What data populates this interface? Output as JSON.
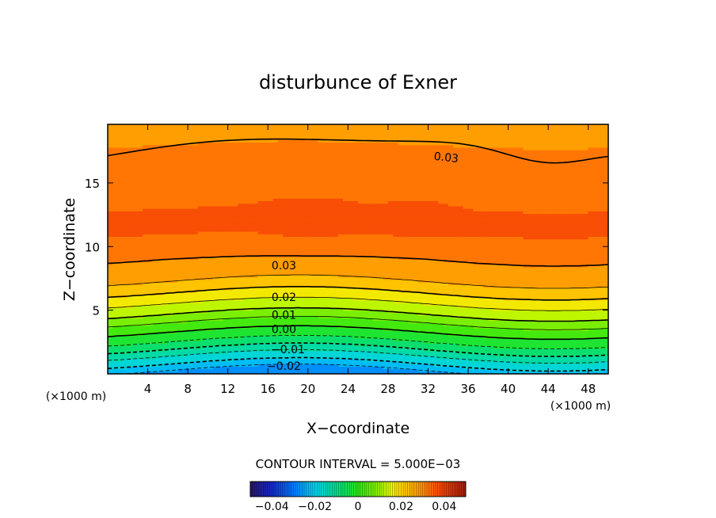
{
  "chart_data": {
    "type": "heatmap",
    "title": "disturbunce of Exner",
    "xlabel": "X−coordinate",
    "ylabel": "Z−coordinate",
    "x_unit_left": "(×1000 m)",
    "x_unit_right": "(×1000 m)",
    "xlim": [
      0,
      50
    ],
    "ylim": [
      0,
      19.6
    ],
    "xticks": [
      4,
      8,
      12,
      16,
      20,
      24,
      28,
      32,
      36,
      40,
      44,
      48
    ],
    "yticks": [
      5,
      10,
      15
    ],
    "contour_interval_text": "CONTOUR INTERVAL = 5.000E−03",
    "contour_labels": [
      "0.03",
      "0.03",
      "0.02",
      "0.01",
      "0.00",
      "−0.01",
      "−0.02"
    ],
    "colorbar": {
      "range": [
        -0.05,
        0.05
      ],
      "ticks": [
        -0.04,
        -0.02,
        0,
        0.02,
        0.04
      ],
      "tick_labels": [
        "−0.04",
        "−0.02",
        "0",
        "0.02",
        "0.04"
      ]
    },
    "field_profile": {
      "z": [
        0,
        0.5,
        1,
        1.5,
        2,
        2.5,
        3,
        3.5,
        4,
        4.5,
        5,
        5.5,
        6,
        6.5,
        7,
        7.5,
        8,
        8.5,
        9,
        10,
        11,
        12,
        13,
        14,
        15,
        16,
        17,
        18,
        19.6
      ],
      "value": [
        -0.028,
        -0.022,
        -0.018,
        -0.014,
        -0.009,
        -0.005,
        -0.001,
        0.001,
        0.005,
        0.009,
        0.012,
        0.015,
        0.018,
        0.021,
        0.024,
        0.026,
        0.028,
        0.029,
        0.03,
        0.032,
        0.035,
        0.036,
        0.035,
        0.034,
        0.033,
        0.032,
        0.031,
        0.03,
        0.028
      ]
    }
  }
}
